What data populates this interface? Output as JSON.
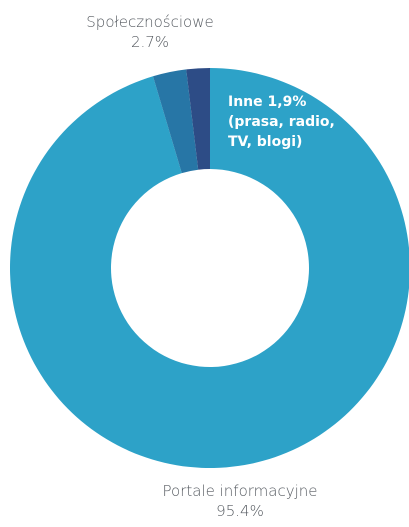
{
  "chart_data": {
    "type": "pie",
    "variant": "donut",
    "title": "",
    "slices": [
      {
        "label": "Portale informacyjne",
        "value": 95.4,
        "value_text": "95.4%",
        "color": "#2da2c8"
      },
      {
        "label": "Społecznościowe",
        "value": 2.7,
        "value_text": "2.7%",
        "color": "#2776a6"
      },
      {
        "label": "Inne 1,9%",
        "value": 1.9,
        "value_text": "(prasa, radio, TV, blogi)",
        "color": "#2d4c86"
      }
    ]
  }
}
